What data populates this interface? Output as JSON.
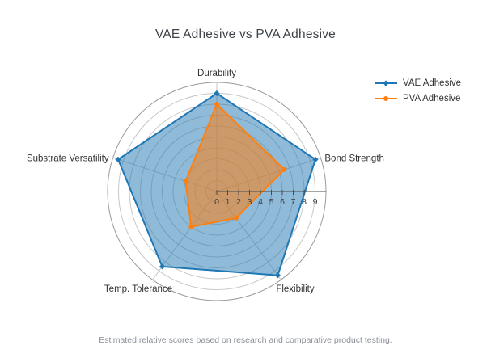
{
  "title": "VAE Adhesive vs PVA Adhesive",
  "caption": "Estimated relative scores based on research and comparative product testing.",
  "chart_data": {
    "type": "radar",
    "categories": [
      "Durability",
      "Bond Strength",
      "Flexibility",
      "Temp. Tolerance",
      "Substrate Versatility"
    ],
    "series": [
      {
        "name": "VAE Adhesive",
        "color": "#1f77b4",
        "fill_opacity": 0.5,
        "marker": "diamond",
        "values": [
          9,
          9.5,
          9.5,
          8.5,
          9.5
        ]
      },
      {
        "name": "PVA Adhesive",
        "color": "#ff7f0e",
        "fill_opacity": 0.55,
        "marker": "circle",
        "values": [
          8,
          6.5,
          3,
          4,
          3
        ]
      }
    ],
    "r_ticks": [
      0,
      1,
      2,
      3,
      4,
      5,
      6,
      7,
      8,
      9
    ],
    "r_max": 10,
    "grid": true,
    "legend_position": "right"
  },
  "colors": {
    "grid": "#c7c7c7",
    "outer_ring": "#9a9a9a",
    "axis": "#4a4a4a",
    "tick_label": "#3c3c3c",
    "axis_label": "#333333",
    "title": "#3d4349",
    "caption": "#8a8f98",
    "background": "#ffffff"
  }
}
